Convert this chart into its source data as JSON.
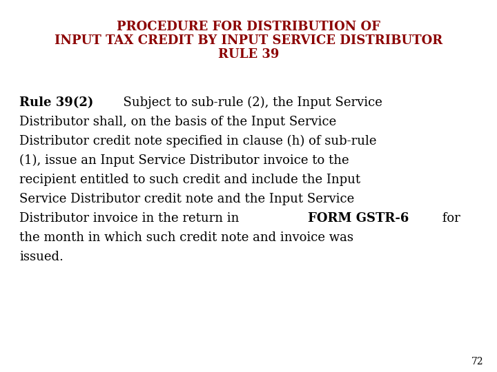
{
  "title_line1": "PROCEDURE FOR DISTRIBUTION OF",
  "title_line2": "INPUT TAX CREDIT BY INPUT SERVICE DISTRIBUTOR",
  "title_line3": "RULE 39",
  "title_color": "#8B0000",
  "background_color": "#FFFFFF",
  "body_color": "#000000",
  "page_number": "72",
  "title_fontsize": 13,
  "body_fontsize": 13,
  "lines": [
    {
      "parts": [
        {
          "text": "Rule 39(2)",
          "bold": true
        },
        {
          "text": "  Subject to sub-rule (2), the Input Service",
          "bold": false
        }
      ]
    },
    {
      "parts": [
        {
          "text": "Distributor shall, on the basis of the Input Service",
          "bold": false
        }
      ]
    },
    {
      "parts": [
        {
          "text": "Distributor credit note specified in clause (h) of sub-rule",
          "bold": false
        }
      ]
    },
    {
      "parts": [
        {
          "text": "(1), issue an Input Service Distributor invoice to the",
          "bold": false
        }
      ]
    },
    {
      "parts": [
        {
          "text": "recipient entitled to such credit and include the Input",
          "bold": false
        }
      ]
    },
    {
      "parts": [
        {
          "text": "Service Distributor credit note and the Input Service",
          "bold": false
        }
      ]
    },
    {
      "parts": [
        {
          "text": "Distributor invoice in the return in ",
          "bold": false
        },
        {
          "text": "FORM GSTR-6",
          "bold": true
        },
        {
          "text": " for",
          "bold": false
        }
      ]
    },
    {
      "parts": [
        {
          "text": "the month in which such credit note and invoice was",
          "bold": false
        }
      ]
    },
    {
      "parts": [
        {
          "text": "issued.",
          "bold": false
        }
      ]
    }
  ]
}
